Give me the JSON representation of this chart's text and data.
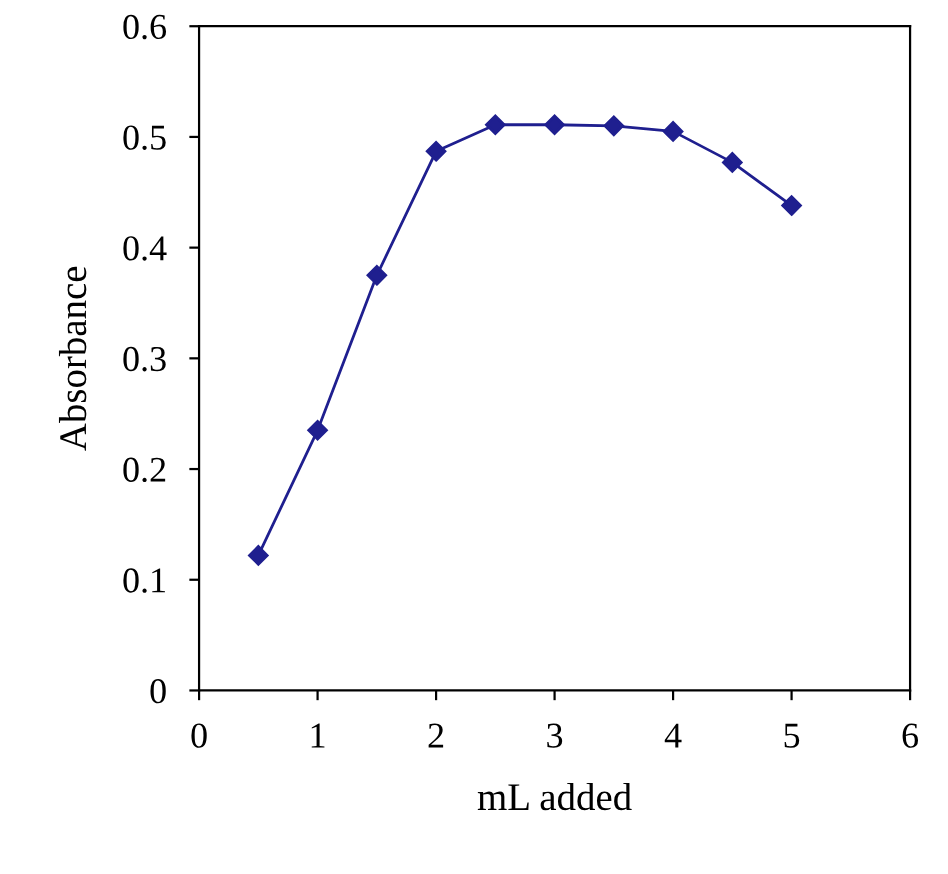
{
  "chart_data": {
    "type": "line",
    "xlabel": "mL added",
    "ylabel": "Absorbance",
    "x": [
      0.5,
      1,
      1.5,
      2,
      2.5,
      3,
      3.5,
      4,
      4.5,
      5
    ],
    "series": [
      {
        "color": "#1f1f8f",
        "values": [
          0.122,
          0.235,
          0.375,
          0.487,
          0.511,
          0.511,
          0.51,
          0.505,
          0.477,
          0.438
        ]
      }
    ],
    "xlim": [
      0,
      6
    ],
    "xticks": [
      0,
      1,
      2,
      3,
      4,
      5,
      6
    ],
    "ylim": [
      0,
      0.6
    ],
    "yticks": [
      0,
      0.1,
      0.2,
      0.3,
      0.4,
      0.5,
      0.6
    ],
    "marker": "diamond",
    "line_style": "solid",
    "grid": false,
    "legend": false
  }
}
